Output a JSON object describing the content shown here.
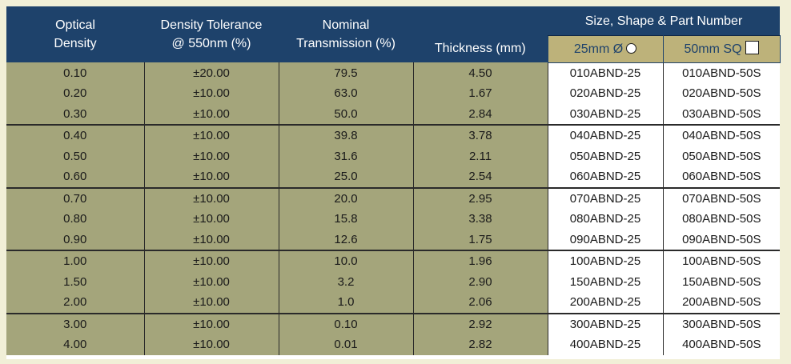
{
  "headers": {
    "optical_density": [
      "Optical",
      "Density"
    ],
    "density_tolerance": [
      "Density Tolerance",
      "@ 550nm (%)"
    ],
    "nominal_transmission": [
      "Nominal",
      "Transmission (%)"
    ],
    "thickness": "Thickness (mm)",
    "size_group": "Size, Shape & Part Number",
    "size_25": "25mm Ø",
    "size_50": "50mm SQ"
  },
  "groups": [
    [
      {
        "od": "0.10",
        "tol": "±20.00",
        "trans": "79.5",
        "thick": "4.50",
        "p25": "010ABND-25",
        "p50": "010ABND-50S"
      },
      {
        "od": "0.20",
        "tol": "±10.00",
        "trans": "63.0",
        "thick": "1.67",
        "p25": "020ABND-25",
        "p50": "020ABND-50S"
      },
      {
        "od": "0.30",
        "tol": "±10.00",
        "trans": "50.0",
        "thick": "2.84",
        "p25": "030ABND-25",
        "p50": "030ABND-50S"
      }
    ],
    [
      {
        "od": "0.40",
        "tol": "±10.00",
        "trans": "39.8",
        "thick": "3.78",
        "p25": "040ABND-25",
        "p50": "040ABND-50S"
      },
      {
        "od": "0.50",
        "tol": "±10.00",
        "trans": "31.6",
        "thick": "2.11",
        "p25": "050ABND-25",
        "p50": "050ABND-50S"
      },
      {
        "od": "0.60",
        "tol": "±10.00",
        "trans": "25.0",
        "thick": "2.54",
        "p25": "060ABND-25",
        "p50": "060ABND-50S"
      }
    ],
    [
      {
        "od": "0.70",
        "tol": "±10.00",
        "trans": "20.0",
        "thick": "2.95",
        "p25": "070ABND-25",
        "p50": "070ABND-50S"
      },
      {
        "od": "0.80",
        "tol": "±10.00",
        "trans": "15.8",
        "thick": "3.38",
        "p25": "080ABND-25",
        "p50": "080ABND-50S"
      },
      {
        "od": "0.90",
        "tol": "±10.00",
        "trans": "12.6",
        "thick": "1.75",
        "p25": "090ABND-25",
        "p50": "090ABND-50S"
      }
    ],
    [
      {
        "od": "1.00",
        "tol": "±10.00",
        "trans": "10.0",
        "thick": "1.96",
        "p25": "100ABND-25",
        "p50": "100ABND-50S"
      },
      {
        "od": "1.50",
        "tol": "±10.00",
        "trans": "3.2",
        "thick": "2.90",
        "p25": "150ABND-25",
        "p50": "150ABND-50S"
      },
      {
        "od": "2.00",
        "tol": "±10.00",
        "trans": "1.0",
        "thick": "2.06",
        "p25": "200ABND-25",
        "p50": "200ABND-50S"
      }
    ],
    [
      {
        "od": "3.00",
        "tol": "±10.00",
        "trans": "0.10",
        "thick": "2.92",
        "p25": "300ABND-25",
        "p50": "300ABND-50S"
      },
      {
        "od": "4.00",
        "tol": "±10.00",
        "trans": "0.01",
        "thick": "2.82",
        "p25": "400ABND-25",
        "p50": "400ABND-50S"
      }
    ]
  ]
}
